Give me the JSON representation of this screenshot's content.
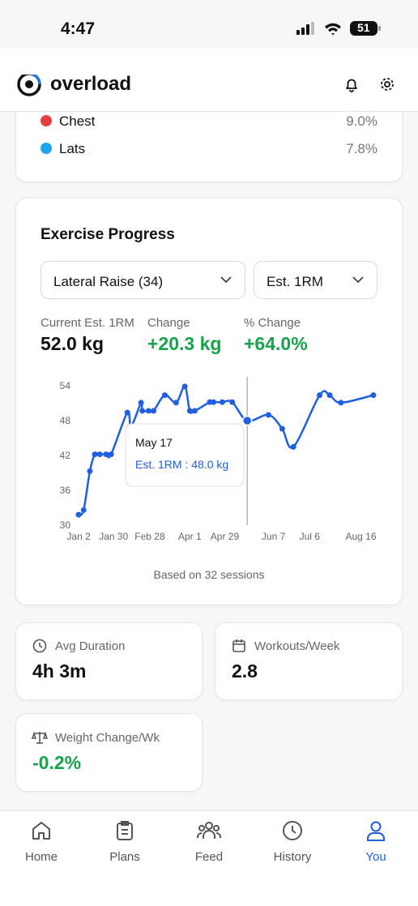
{
  "status_bar": {
    "time": "4:47",
    "battery": "51"
  },
  "header": {
    "app_name": "overload"
  },
  "muscle_list": [
    {
      "name": "Chest",
      "share": "9.0%"
    },
    {
      "name": "Lats",
      "share": "7.8%"
    }
  ],
  "progress_card": {
    "title": "Exercise Progress",
    "exercise_select": "Lateral Raise (34)",
    "metric_select": "Est. 1RM",
    "stats": [
      {
        "label": "Current Est. 1RM",
        "value": "52.0 kg"
      },
      {
        "label": "Change",
        "value": "+20.3 kg"
      },
      {
        "label": "% Change",
        "value": "+64.0%"
      }
    ]
  },
  "chart_data": {
    "type": "line",
    "color": "#1f5fe0",
    "x": [
      2,
      6,
      11,
      15,
      19,
      24,
      28,
      41,
      44,
      52,
      53,
      58,
      62,
      71,
      80,
      87,
      91,
      95,
      107,
      110,
      117,
      125,
      137,
      154,
      165,
      174,
      195,
      203,
      212,
      238
    ],
    "values": [
      31.8,
      32.6,
      39.3,
      42.2,
      42.2,
      42.2,
      42.2,
      49.4,
      47.0,
      51.1,
      49.7,
      49.7,
      49.7,
      52.4,
      51.1,
      53.9,
      49.7,
      49.7,
      51.2,
      51.2,
      51.2,
      51.2,
      48.0,
      49.0,
      46.6,
      43.5,
      52.4,
      52.4,
      51.1,
      52.4
    ],
    "xlim": [
      0,
      240
    ],
    "ylim": [
      30,
      55
    ],
    "yticks": [
      30,
      36,
      42,
      48,
      54
    ],
    "xticks": [
      {
        "value": 2,
        "label": "Jan 2"
      },
      {
        "value": 30,
        "label": "Jan 30"
      },
      {
        "value": 59,
        "label": "Feb 28"
      },
      {
        "value": 91,
        "label": "Apr 1"
      },
      {
        "value": 119,
        "label": "Apr 29"
      },
      {
        "value": 158,
        "label": "Jun 7"
      },
      {
        "value": 187,
        "label": "Jul 6"
      },
      {
        "value": 228,
        "label": "Aug 16"
      }
    ],
    "tooltip": {
      "index": 22,
      "title": "May 17",
      "label": "Est. 1RM : 48.0 kg"
    },
    "note": "Based on 32 sessions"
  },
  "stat_cards": [
    {
      "label": "Avg Duration",
      "value": "4h 3m"
    },
    {
      "label": "Workouts/Week",
      "value": "2.8"
    },
    {
      "label": "Weight Change/Wk",
      "value": "-0.2%"
    }
  ],
  "nav": [
    {
      "label": "Home"
    },
    {
      "label": "Plans"
    },
    {
      "label": "Feed"
    },
    {
      "label": "History"
    },
    {
      "label": "You"
    }
  ]
}
